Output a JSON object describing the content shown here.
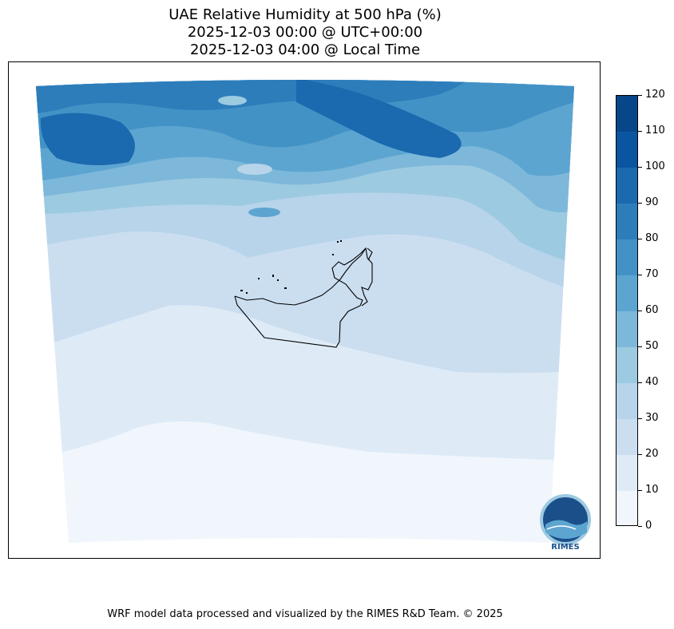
{
  "title": {
    "line1": "UAE Relative Humidity at 500 hPa (%)",
    "line2": "2025-12-03 00:00 @ UTC+00:00",
    "line3": "2025-12-03 04:00 @ Local Time"
  },
  "colorbar": {
    "ticks": [
      "0",
      "10",
      "20",
      "30",
      "40",
      "50",
      "60",
      "70",
      "80",
      "90",
      "100",
      "110",
      "120"
    ],
    "colors": [
      "#f0f6fc",
      "#deebf7",
      "#cbdef0",
      "#b7d4ea",
      "#9ccae1",
      "#7db8da",
      "#5da5d1",
      "#4292c6",
      "#2d7dbb",
      "#1b69af",
      "#0a559f",
      "#08468a"
    ]
  },
  "logo": {
    "text": "RIMES"
  },
  "credit": "WRF model data processed and visualized by the RIMES R&D Team. © 2025"
}
